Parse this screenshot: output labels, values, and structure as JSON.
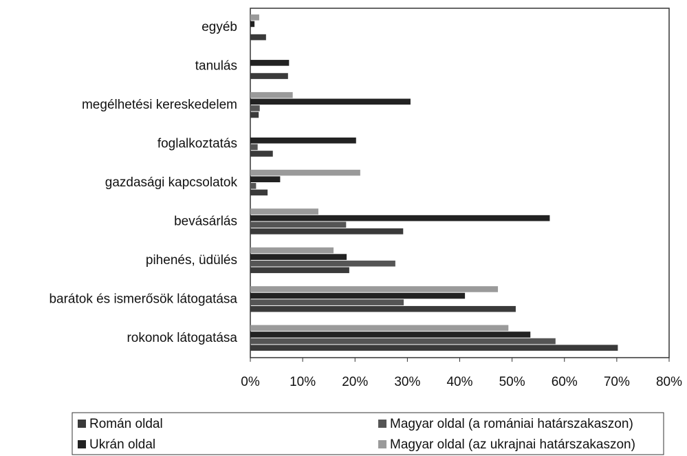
{
  "chart_data": {
    "type": "barh",
    "categories": [
      "egyéb",
      "tanulás",
      "megélhetési kereskedelem",
      "foglalkoztatás",
      "gazdasági kapcsolatok",
      "bevásárlás",
      "pihenés, üdülés",
      "barátok és ismerősök látogatása",
      "rokonok látogatása"
    ],
    "series": [
      {
        "name": "Román oldal",
        "color": "#3a3a3a",
        "values": [
          3,
          7.2,
          1.6,
          4.3,
          3.3,
          29.2,
          18.9,
          50.7,
          70.2
        ]
      },
      {
        "name": "Magyar oldal (a romániai határszakaszon)",
        "color": "#555555",
        "values": [
          0,
          0,
          1.8,
          1.4,
          1.1,
          18.3,
          27.7,
          29.3,
          58.3
        ]
      },
      {
        "name": "Ukrán oldal",
        "color": "#222222",
        "values": [
          0.8,
          7.4,
          30.6,
          20.2,
          5.7,
          57.2,
          18.4,
          41,
          53.5
        ]
      },
      {
        "name": "Magyar oldal (az ukrajnai határszakaszon)",
        "color": "#9a9a9a",
        "values": [
          1.7,
          0,
          8.1,
          0,
          21,
          13,
          15.9,
          47.3,
          49.3
        ]
      }
    ],
    "xlim": [
      0,
      80
    ],
    "xticks": [
      {
        "value": 0,
        "label": "0%"
      },
      {
        "value": 10,
        "label": "10%"
      },
      {
        "value": 20,
        "label": "20%"
      },
      {
        "value": 30,
        "label": "30%"
      },
      {
        "value": 40,
        "label": "40%"
      },
      {
        "value": 50,
        "label": "50%"
      },
      {
        "value": 60,
        "label": "60%"
      },
      {
        "value": 70,
        "label": "70%"
      },
      {
        "value": 80,
        "label": "80%"
      }
    ],
    "grid": false,
    "legend": "bottom"
  }
}
